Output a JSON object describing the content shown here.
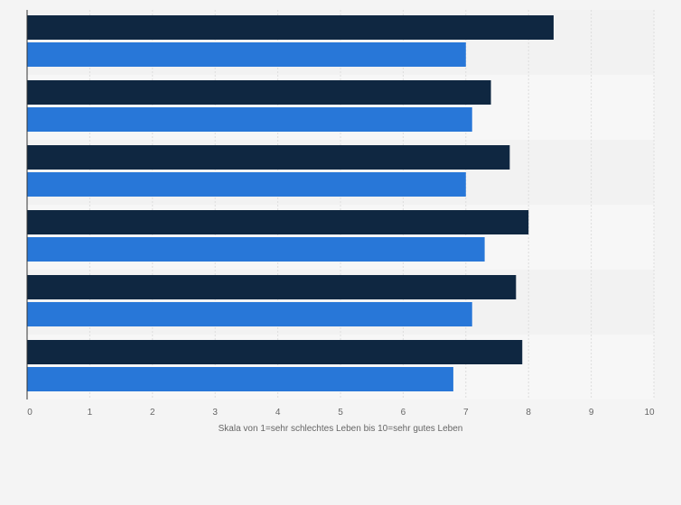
{
  "chart_data": {
    "type": "bar",
    "orientation": "horizontal",
    "categories": [
      "",
      "",
      "",
      "",
      "",
      ""
    ],
    "series": [
      {
        "values": [
          8.4,
          7.4,
          7.7,
          8.0,
          7.8,
          7.9
        ]
      },
      {
        "values": [
          7.0,
          7.1,
          7.0,
          7.3,
          7.1,
          6.8
        ]
      }
    ],
    "xlim": [
      0,
      10
    ],
    "xticks": [
      "0",
      "1",
      "2",
      "3",
      "4",
      "5",
      "6",
      "7",
      "8",
      "9",
      "10"
    ],
    "xlabel": "Skala von 1=sehr schlechtes Leben bis 10=sehr gutes Leben",
    "ylabel": "",
    "title": "",
    "grid": true,
    "legend": "none"
  },
  "colors": {
    "series": [
      "#0f2741",
      "#2877d8"
    ],
    "band_light": "#f7f7f7",
    "band_dark": "#f2f2f2",
    "grid": "#dddddd",
    "axis": "#333333"
  }
}
